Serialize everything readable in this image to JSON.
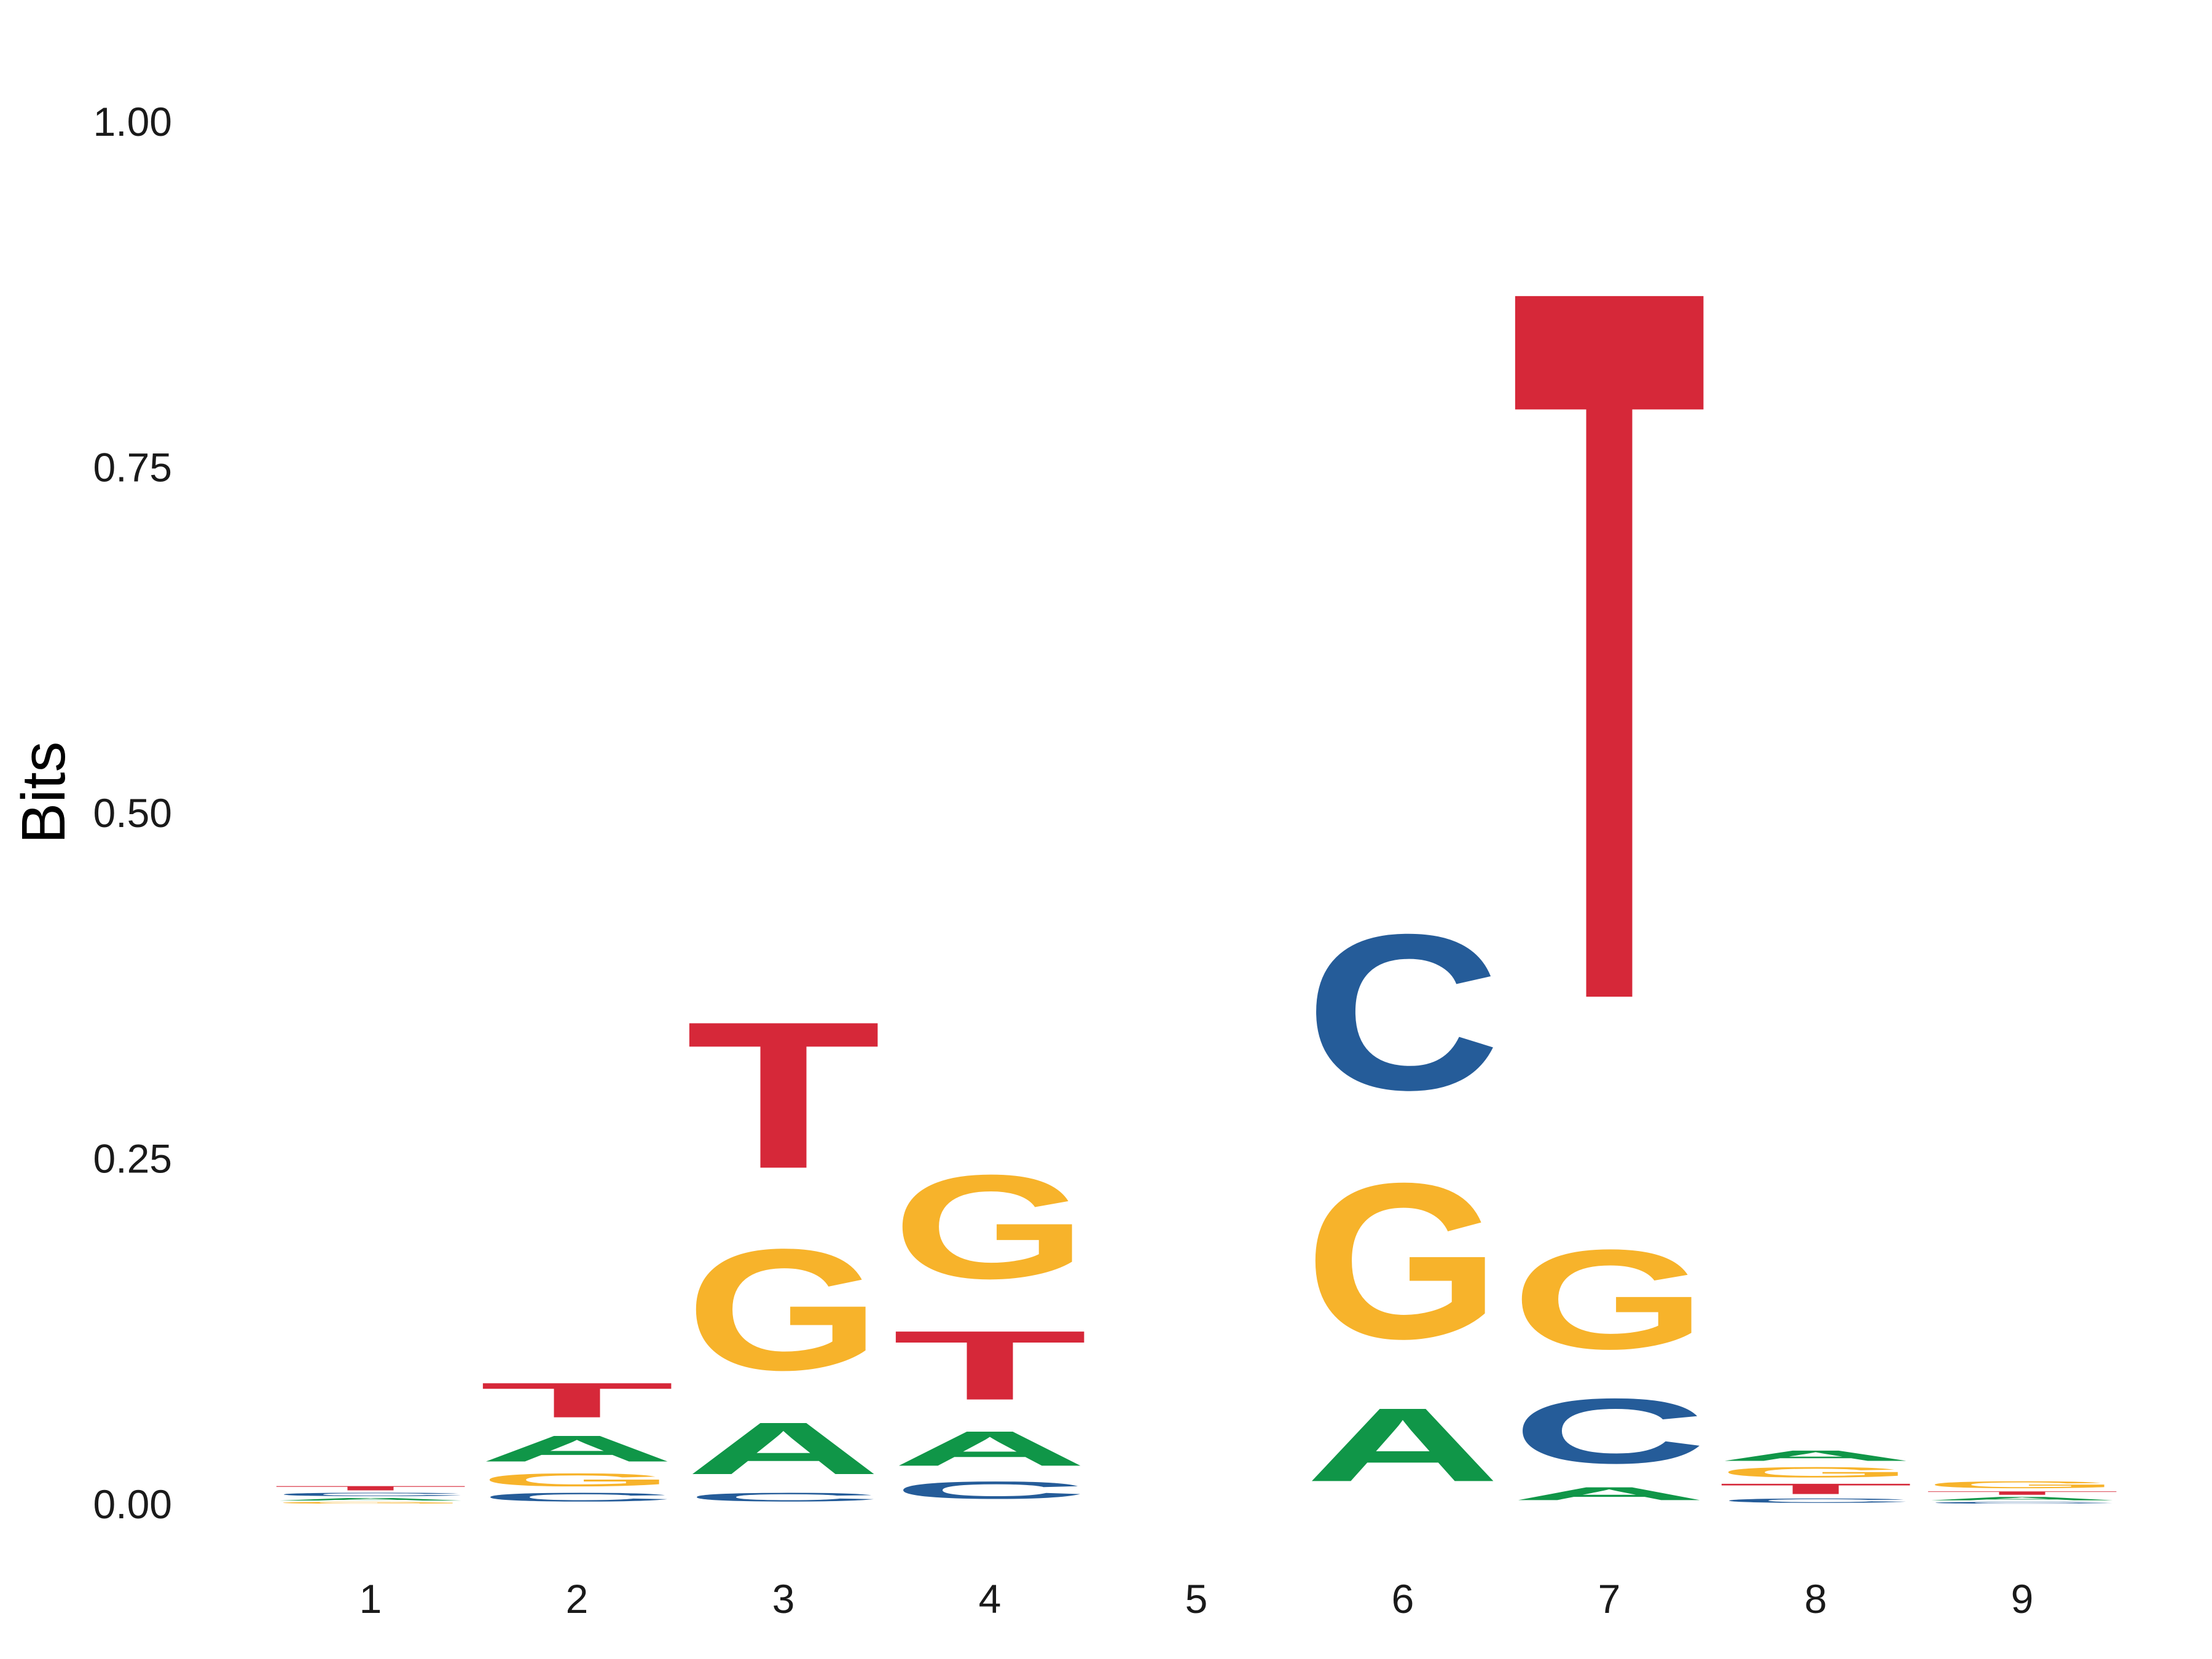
{
  "chart_data": {
    "type": "sequence-logo",
    "ylabel": "Bits",
    "xlabel": "",
    "ylim": [
      0,
      1.05
    ],
    "yticks": [
      "0.00",
      "0.25",
      "0.50",
      "0.75",
      "1.00"
    ],
    "ytick_values": [
      0,
      0.25,
      0.5,
      0.75,
      1.0
    ],
    "positions": [
      "1",
      "2",
      "3",
      "4",
      "5",
      "6",
      "7",
      "8",
      "9"
    ],
    "colors": {
      "A": "#109648",
      "C": "#255C99",
      "G": "#F7B32B",
      "T": "#D62839"
    },
    "columns": [
      [
        {
          "letter": "G",
          "bits": 0.002
        },
        {
          "letter": "A",
          "bits": 0.003
        },
        {
          "letter": "C",
          "bits": 0.004
        },
        {
          "letter": "T",
          "bits": 0.005
        }
      ],
      [
        {
          "letter": "C",
          "bits": 0.01
        },
        {
          "letter": "G",
          "bits": 0.015
        },
        {
          "letter": "A",
          "bits": 0.03
        },
        {
          "letter": "T",
          "bits": 0.04
        }
      ],
      [
        {
          "letter": "C",
          "bits": 0.01
        },
        {
          "letter": "A",
          "bits": 0.06
        },
        {
          "letter": "G",
          "bits": 0.14
        },
        {
          "letter": "T",
          "bits": 0.17
        }
      ],
      [
        {
          "letter": "C",
          "bits": 0.02
        },
        {
          "letter": "A",
          "bits": 0.04
        },
        {
          "letter": "T",
          "bits": 0.08
        },
        {
          "letter": "G",
          "bits": 0.12
        }
      ],
      [],
      [
        {
          "letter": "A",
          "bits": 0.085
        },
        {
          "letter": "G",
          "bits": 0.18
        },
        {
          "letter": "C",
          "bits": 0.18
        }
      ],
      [
        {
          "letter": "A",
          "bits": 0.015
        },
        {
          "letter": "C",
          "bits": 0.075
        },
        {
          "letter": "G",
          "bits": 0.115
        },
        {
          "letter": "T",
          "bits": 0.825
        }
      ],
      [
        {
          "letter": "C",
          "bits": 0.005
        },
        {
          "letter": "T",
          "bits": 0.012
        },
        {
          "letter": "G",
          "bits": 0.012
        },
        {
          "letter": "A",
          "bits": 0.012
        }
      ],
      [
        {
          "letter": "C",
          "bits": 0.002
        },
        {
          "letter": "A",
          "bits": 0.004
        },
        {
          "letter": "T",
          "bits": 0.004
        },
        {
          "letter": "G",
          "bits": 0.008
        }
      ]
    ]
  }
}
